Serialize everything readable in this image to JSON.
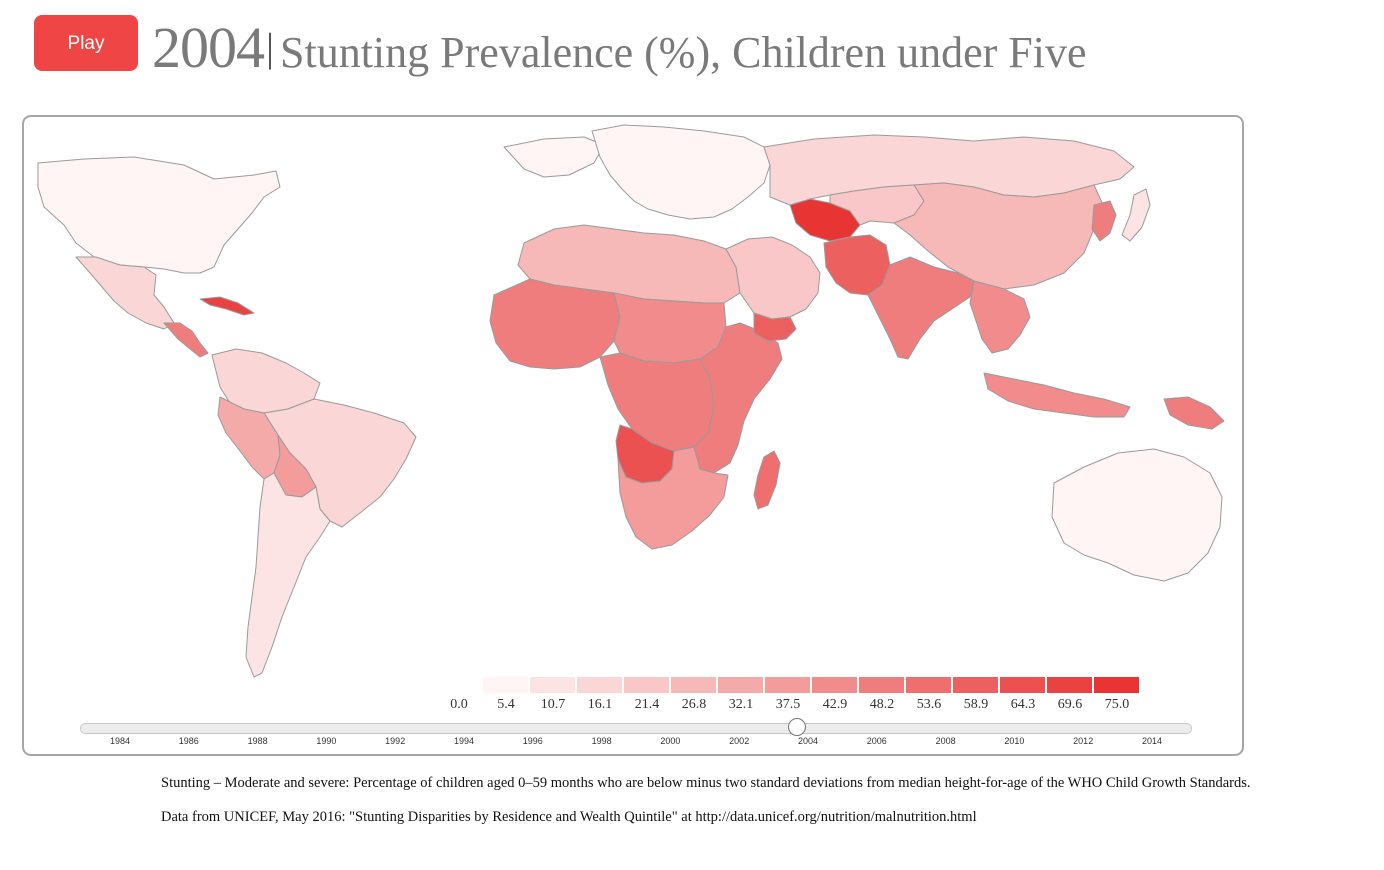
{
  "controls": {
    "play_label": "Play"
  },
  "title": {
    "year": "2004",
    "separator": "|",
    "text": "Stunting Prevalence (%), Children under Five"
  },
  "legend": {
    "labels": [
      "0.0",
      "5.4",
      "10.7",
      "16.1",
      "21.4",
      "26.8",
      "32.1",
      "37.5",
      "42.9",
      "48.2",
      "53.6",
      "58.9",
      "64.3",
      "69.6",
      "75.0"
    ],
    "colors": [
      "#fff5f5",
      "#fde4e4",
      "#fbd6d6",
      "#f9c7c7",
      "#f7b8b8",
      "#f5aaaa",
      "#f49b9b",
      "#f28c8c",
      "#f07d7d",
      "#ef6f6f",
      "#ed6060",
      "#ec5151",
      "#ea4242",
      "#e93434"
    ]
  },
  "timeline": {
    "years": [
      "1984",
      "1986",
      "1988",
      "1990",
      "1992",
      "1994",
      "1996",
      "1998",
      "2000",
      "2002",
      "2004",
      "2006",
      "2008",
      "2010",
      "2012",
      "2014"
    ],
    "selected": "2004",
    "selected_fraction": 0.6447
  },
  "notes": {
    "definition": "Stunting – Moderate and severe: Percentage of children aged 0–59 months who are below minus two standard deviations from median height-for-age of the WHO Child Growth Standards.",
    "source": "Data from UNICEF, May 2016: \"Stunting Disparities by Residence and Wealth Quintile\" at http://data.unicef.org/nutrition/malnutrition.html"
  },
  "map": {
    "regions": [
      {
        "name": "canada-usa",
        "value": 2
      },
      {
        "name": "greenland",
        "value": 0
      },
      {
        "name": "mexico",
        "value": 16
      },
      {
        "name": "central-america",
        "value": 48
      },
      {
        "name": "cuba",
        "value": 66
      },
      {
        "name": "south-america-north",
        "value": 14
      },
      {
        "name": "brazil",
        "value": 11
      },
      {
        "name": "peru",
        "value": 30
      },
      {
        "name": "bolivia",
        "value": 33
      },
      {
        "name": "southern-cone",
        "value": 7
      },
      {
        "name": "europe",
        "value": 3
      },
      {
        "name": "north-africa",
        "value": 22
      },
      {
        "name": "west-africa",
        "value": 48
      },
      {
        "name": "sahel",
        "value": 42
      },
      {
        "name": "central-africa",
        "value": 45
      },
      {
        "name": "angola",
        "value": 60
      },
      {
        "name": "east-africa",
        "value": 48
      },
      {
        "name": "southern-africa",
        "value": 35
      },
      {
        "name": "madagascar",
        "value": 53
      },
      {
        "name": "middle-east",
        "value": 18
      },
      {
        "name": "yemen",
        "value": 58
      },
      {
        "name": "turkmenistan",
        "value": 72
      },
      {
        "name": "afghanistan-pakistan",
        "value": 55
      },
      {
        "name": "russia",
        "value": 12
      },
      {
        "name": "central-asia",
        "value": 20
      },
      {
        "name": "china",
        "value": 22
      },
      {
        "name": "korea",
        "value": 46
      },
      {
        "name": "india",
        "value": 48
      },
      {
        "name": "southeast-asia",
        "value": 40
      },
      {
        "name": "indonesia",
        "value": 40
      },
      {
        "name": "papua-new-guinea",
        "value": 45
      },
      {
        "name": "australia",
        "value": 2
      },
      {
        "name": "japan",
        "value": 6
      }
    ]
  }
}
